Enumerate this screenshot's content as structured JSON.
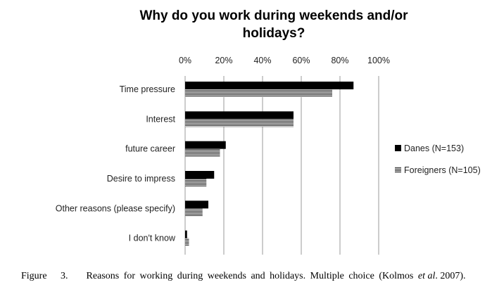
{
  "chart_data": {
    "type": "bar",
    "orientation": "horizontal",
    "title_lines": [
      "Why do you work during weekends and/or",
      "holidays?"
    ],
    "categories": [
      "Time pressure",
      "Interest",
      "future career",
      "Desire to impress",
      "Other reasons (please specify)",
      "I don't know"
    ],
    "series": [
      {
        "name": "Danes (N=153)",
        "values": [
          87,
          56,
          21,
          15,
          12,
          1
        ]
      },
      {
        "name": "Foreigners (N=105)",
        "values": [
          76,
          56,
          18,
          11,
          9,
          2
        ]
      }
    ],
    "xticks": [
      "0%",
      "20%",
      "40%",
      "60%",
      "80%",
      "100%"
    ],
    "xlim": [
      0,
      100
    ],
    "legend_position": "right",
    "grid": true,
    "colors": {
      "danes": "#000000",
      "foreigners_stripe_dark": "#444444",
      "foreigners_stripe_light": "#d0d0d0",
      "grid": "#999999"
    }
  },
  "caption": {
    "prefix": "Figure   3.    Reasons for working during weekends and holidays. Multiple choice (Kolmos ",
    "italic": "et al",
    "suffix": ". 2007)."
  }
}
